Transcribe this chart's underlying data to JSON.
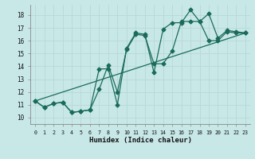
{
  "title": "",
  "xlabel": "Humidex (Indice chaleur)",
  "ylabel": "",
  "bg_color": "#c8e8e8",
  "grid_color": "#b8d8d8",
  "line_color": "#1a6b5a",
  "xlim": [
    -0.5,
    23.5
  ],
  "ylim": [
    9.5,
    18.8
  ],
  "xticks": [
    0,
    1,
    2,
    3,
    4,
    5,
    6,
    7,
    8,
    9,
    10,
    11,
    12,
    13,
    14,
    15,
    16,
    17,
    18,
    19,
    20,
    21,
    22,
    23
  ],
  "yticks": [
    10,
    11,
    12,
    13,
    14,
    15,
    16,
    17,
    18
  ],
  "line1_x": [
    0,
    1,
    2,
    3,
    4,
    5,
    6,
    7,
    8,
    9,
    10,
    11,
    12,
    13,
    14,
    15,
    16,
    17,
    18,
    19,
    20,
    21,
    22,
    23
  ],
  "line1_y": [
    11.3,
    10.8,
    11.1,
    11.2,
    10.4,
    10.5,
    10.6,
    13.8,
    13.8,
    11.0,
    15.4,
    16.6,
    16.5,
    13.5,
    16.9,
    17.4,
    17.4,
    18.4,
    17.5,
    18.1,
    16.2,
    16.8,
    16.7,
    16.6
  ],
  "line2_x": [
    0,
    1,
    2,
    3,
    4,
    5,
    6,
    7,
    8,
    9,
    10,
    11,
    12,
    13,
    14,
    15,
    16,
    17,
    18,
    19,
    20,
    21,
    22,
    23
  ],
  "line2_y": [
    11.3,
    10.8,
    11.1,
    11.2,
    10.4,
    10.5,
    10.6,
    12.2,
    14.1,
    12.0,
    15.3,
    16.5,
    16.4,
    14.2,
    14.2,
    15.2,
    17.5,
    17.5,
    17.5,
    16.0,
    16.0,
    16.7,
    16.6,
    16.6
  ],
  "line3_x": [
    0,
    23
  ],
  "line3_y": [
    11.3,
    16.6
  ]
}
